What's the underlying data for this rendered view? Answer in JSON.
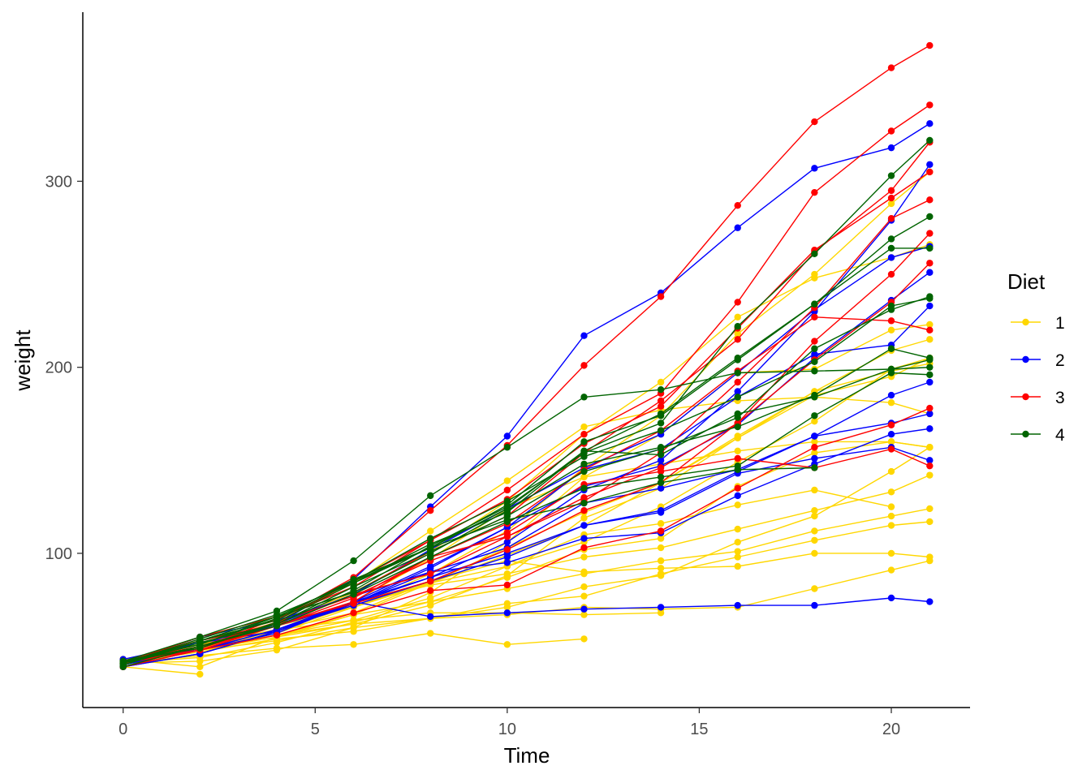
{
  "chart_data": {
    "type": "line",
    "xlabel": "Time",
    "ylabel": "weight",
    "xlim": [
      -1.05,
      22.05
    ],
    "ylim": [
      17.1,
      390.9
    ],
    "x_ticks": [
      0,
      5,
      10,
      15,
      20
    ],
    "y_ticks": [
      100,
      200,
      300
    ],
    "grid": false,
    "legend": {
      "title": "Diet",
      "position": "right",
      "entries": [
        "1",
        "2",
        "3",
        "4"
      ]
    },
    "colors": {
      "1": "#FFD700",
      "2": "#0000FF",
      "3": "#FF0000",
      "4": "#006400"
    },
    "times": [
      0,
      2,
      4,
      6,
      8,
      10,
      12,
      14,
      16,
      18,
      20,
      21
    ],
    "series": [
      {
        "chick": 1,
        "diet": "1",
        "weight": [
          42,
          51,
          59,
          64,
          76,
          93,
          106,
          125,
          149,
          171,
          199,
          205
        ]
      },
      {
        "chick": 2,
        "diet": "1",
        "weight": [
          40,
          49,
          58,
          72,
          84,
          103,
          122,
          138,
          162,
          187,
          209,
          215
        ]
      },
      {
        "chick": 3,
        "diet": "1",
        "weight": [
          43,
          39,
          55,
          67,
          84,
          99,
          115,
          138,
          163,
          187,
          198,
          202
        ]
      },
      {
        "chick": 4,
        "diet": "1",
        "weight": [
          42,
          49,
          56,
          67,
          74,
          87,
          102,
          108,
          136,
          154,
          160,
          157
        ]
      },
      {
        "chick": 5,
        "diet": "1",
        "weight": [
          41,
          42,
          48,
          60,
          79,
          106,
          141,
          164,
          197,
          199,
          220,
          223
        ]
      },
      {
        "chick": 6,
        "diet": "1",
        "weight": [
          41,
          49,
          59,
          74,
          97,
          124,
          141,
          148,
          155,
          160,
          160,
          157
        ]
      },
      {
        "chick": 7,
        "diet": "1",
        "weight": [
          41,
          49,
          57,
          71,
          89,
          112,
          146,
          174,
          218,
          250,
          288,
          305
        ]
      },
      {
        "chick": 8,
        "diet": "1",
        "weight": [
          42,
          50,
          61,
          71,
          84,
          93,
          110,
          116,
          126,
          134,
          125
        ]
      },
      {
        "chick": 9,
        "diet": "1",
        "weight": [
          42,
          51,
          59,
          68,
          85,
          96,
          90,
          92,
          93,
          100,
          100,
          98
        ]
      },
      {
        "chick": 10,
        "diet": "1",
        "weight": [
          41,
          44,
          52,
          63,
          74,
          81,
          89,
          96,
          101,
          112,
          120,
          124
        ]
      },
      {
        "chick": 11,
        "diet": "1",
        "weight": [
          43,
          51,
          63,
          84,
          112,
          139,
          168,
          177,
          182,
          184,
          181,
          175
        ]
      },
      {
        "chick": 12,
        "diet": "1",
        "weight": [
          41,
          49,
          56,
          62,
          72,
          88,
          119,
          135,
          162,
          185,
          195,
          205
        ]
      },
      {
        "chick": 13,
        "diet": "1",
        "weight": [
          41,
          48,
          53,
          60,
          65,
          67,
          71,
          70,
          71,
          81,
          91,
          96
        ]
      },
      {
        "chick": 14,
        "diet": "1",
        "weight": [
          41,
          49,
          62,
          79,
          101,
          128,
          164,
          192,
          227,
          248,
          259,
          266
        ]
      },
      {
        "chick": 15,
        "diet": "1",
        "weight": [
          41,
          49,
          56,
          64,
          68,
          68,
          67,
          68
        ]
      },
      {
        "chick": 16,
        "diet": "1",
        "weight": [
          41,
          45,
          49,
          51,
          57,
          51,
          54
        ]
      },
      {
        "chick": 17,
        "diet": "1",
        "weight": [
          42,
          51,
          61,
          72,
          83,
          89,
          98,
          103,
          113,
          123,
          133,
          142
        ]
      },
      {
        "chick": 18,
        "diet": "1",
        "weight": [
          39,
          35
        ]
      },
      {
        "chick": 19,
        "diet": "1",
        "weight": [
          43,
          48,
          55,
          62,
          65,
          71,
          82,
          88,
          106,
          120,
          144,
          157
        ]
      },
      {
        "chick": 20,
        "diet": "1",
        "weight": [
          41,
          47,
          54,
          58,
          65,
          73,
          77,
          89,
          98,
          107,
          115,
          117
        ]
      },
      {
        "chick": 21,
        "diet": "2",
        "weight": [
          40,
          50,
          62,
          86,
          125,
          163,
          217,
          240,
          275,
          307,
          318,
          331
        ]
      },
      {
        "chick": 22,
        "diet": "2",
        "weight": [
          41,
          55,
          64,
          77,
          90,
          95,
          108,
          111,
          131,
          148,
          164,
          167
        ]
      },
      {
        "chick": 23,
        "diet": "2",
        "weight": [
          43,
          52,
          61,
          73,
          90,
          103,
          127,
          135,
          145,
          163,
          170,
          175
        ]
      },
      {
        "chick": 24,
        "diet": "2",
        "weight": [
          42,
          52,
          58,
          74,
          66,
          68,
          70,
          71,
          72,
          72,
          76,
          74
        ]
      },
      {
        "chick": 25,
        "diet": "2",
        "weight": [
          40,
          49,
          62,
          78,
          102,
          124,
          146,
          164,
          197,
          231,
          259,
          265
        ]
      },
      {
        "chick": 26,
        "diet": "2",
        "weight": [
          42,
          48,
          57,
          74,
          93,
          114,
          136,
          147,
          169,
          205,
          236,
          251
        ]
      },
      {
        "chick": 27,
        "diet": "2",
        "weight": [
          39,
          46,
          58,
          73,
          87,
          100,
          115,
          123,
          144,
          163,
          185,
          192
        ]
      },
      {
        "chick": 28,
        "diet": "2",
        "weight": [
          39,
          46,
          58,
          73,
          92,
          114,
          145,
          156,
          184,
          207,
          212,
          233
        ]
      },
      {
        "chick": 29,
        "diet": "2",
        "weight": [
          39,
          48,
          59,
          74,
          87,
          106,
          134,
          150,
          187,
          230,
          279,
          309
        ]
      },
      {
        "chick": 30,
        "diet": "2",
        "weight": [
          42,
          48,
          59,
          72,
          85,
          98,
          115,
          122,
          143,
          151,
          157,
          150
        ]
      },
      {
        "chick": 31,
        "diet": "3",
        "weight": [
          42,
          53,
          62,
          73,
          85,
          102,
          123,
          138,
          170,
          204,
          235,
          256
        ]
      },
      {
        "chick": 32,
        "diet": "3",
        "weight": [
          41,
          49,
          65,
          82,
          107,
          129,
          159,
          179,
          221,
          263,
          291,
          305
        ]
      },
      {
        "chick": 33,
        "diet": "3",
        "weight": [
          39,
          50,
          63,
          77,
          96,
          111,
          137,
          144,
          151,
          146,
          156,
          147
        ]
      },
      {
        "chick": 34,
        "diet": "3",
        "weight": [
          41,
          49,
          63,
          85,
          107,
          134,
          164,
          186,
          235,
          294,
          327,
          341
        ]
      },
      {
        "chick": 35,
        "diet": "3",
        "weight": [
          41,
          53,
          64,
          87,
          123,
          158,
          201,
          238,
          287,
          332,
          361,
          373
        ]
      },
      {
        "chick": 36,
        "diet": "3",
        "weight": [
          39,
          48,
          61,
          76,
          98,
          116,
          145,
          166,
          198,
          227,
          225,
          220
        ]
      },
      {
        "chick": 37,
        "diet": "3",
        "weight": [
          41,
          48,
          56,
          68,
          80,
          83,
          103,
          112,
          135,
          157,
          169,
          178
        ]
      },
      {
        "chick": 38,
        "diet": "3",
        "weight": [
          41,
          49,
          61,
          74,
          98,
          109,
          128,
          154,
          192,
          232,
          280,
          290
        ]
      },
      {
        "chick": 39,
        "diet": "3",
        "weight": [
          42,
          50,
          61,
          78,
          89,
          109,
          130,
          146,
          170,
          214,
          250,
          272
        ]
      },
      {
        "chick": 40,
        "diet": "3",
        "weight": [
          41,
          55,
          66,
          79,
          101,
          120,
          154,
          182,
          215,
          262,
          295,
          321
        ]
      },
      {
        "chick": 41,
        "diet": "4",
        "weight": [
          42,
          51,
          66,
          85,
          103,
          124,
          155,
          153,
          175,
          184,
          199,
          204
        ]
      },
      {
        "chick": 42,
        "diet": "4",
        "weight": [
          42,
          49,
          63,
          84,
          103,
          126,
          160,
          174,
          204,
          234,
          269,
          281
        ]
      },
      {
        "chick": 43,
        "diet": "4",
        "weight": [
          42,
          55,
          69,
          96,
          131,
          157,
          184,
          188,
          197,
          198,
          199,
          200
        ]
      },
      {
        "chick": 44,
        "diet": "4",
        "weight": [
          42,
          51,
          65,
          86,
          103,
          118,
          127,
          138,
          145,
          146
        ]
      },
      {
        "chick": 45,
        "diet": "4",
        "weight": [
          41,
          50,
          61,
          78,
          98,
          117,
          135,
          141,
          147,
          174,
          197,
          196
        ]
      },
      {
        "chick": 46,
        "diet": "4",
        "weight": [
          40,
          52,
          62,
          82,
          101,
          120,
          144,
          156,
          173,
          210,
          231,
          238
        ]
      },
      {
        "chick": 47,
        "diet": "4",
        "weight": [
          41,
          53,
          66,
          79,
          100,
          123,
          148,
          157,
          168,
          185,
          210,
          205
        ]
      },
      {
        "chick": 48,
        "diet": "4",
        "weight": [
          39,
          50,
          62,
          80,
          104,
          125,
          154,
          170,
          222,
          261,
          303,
          322
        ]
      },
      {
        "chick": 49,
        "diet": "4",
        "weight": [
          40,
          53,
          64,
          85,
          108,
          128,
          152,
          166,
          184,
          203,
          233,
          237
        ]
      },
      {
        "chick": 50,
        "diet": "4",
        "weight": [
          41,
          54,
          67,
          84,
          105,
          122,
          155,
          175,
          205,
          234,
          264,
          264
        ]
      }
    ]
  }
}
